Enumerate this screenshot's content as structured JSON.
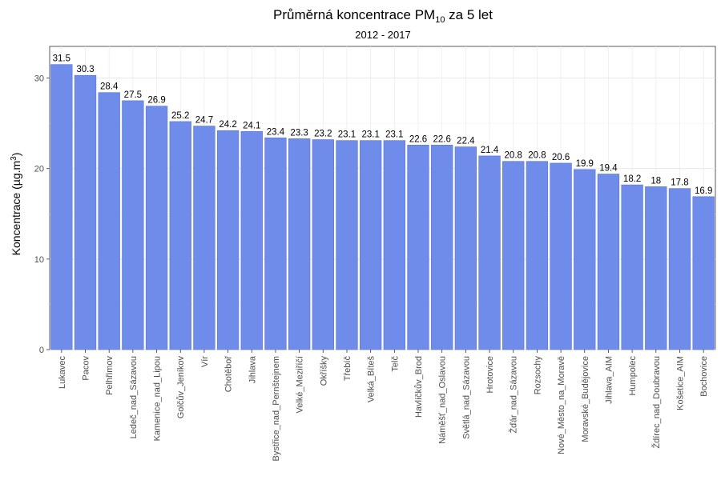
{
  "chart_data": {
    "type": "bar",
    "title": "Průměrná koncentrace PM",
    "title_sub": "10",
    "title_suffix": " za 5 let",
    "subtitle": "2012 - 2017",
    "ylabel": "Koncentrace  (µg.m",
    "ylabel_sup": "3",
    "ylabel_suffix": ")",
    "xlabel": "",
    "ylim": [
      0,
      33.5
    ],
    "yticks": [
      0,
      10,
      20,
      30
    ],
    "grid": true,
    "bar_color": "#6f8ceb",
    "bar_stroke": "#5a75d6",
    "categories": [
      "Lukavec",
      "Pacov",
      "Pelhřimov",
      "Ledeč_nad_Sázavou",
      "Kamenice_nad_Lipou",
      "Golčův_Jeníkov",
      "Vír",
      "Chotěboř",
      "Jihlava",
      "Bystřice_nad_Pernštejnem",
      "Velké_Meziříčí",
      "Okříšky",
      "Třebíč",
      "Velká_Bíteš",
      "Telč",
      "Havlíčkův_Brod",
      "Náměšť_nad_Oslavou",
      "Světlá_nad_Sázavou",
      "Hrotovice",
      "Žďár_nad_Sázavou",
      "Rozsochy",
      "Nové_Město_na_Moravě",
      "Moravské_Budějovice",
      "Jihlava_AIM",
      "Humpolec",
      "Ždírec_nad_Doubravou",
      "Košetice_AIM",
      "Bochovice"
    ],
    "values": [
      31.5,
      30.3,
      28.4,
      27.5,
      26.9,
      25.2,
      24.7,
      24.2,
      24.1,
      23.4,
      23.3,
      23.2,
      23.1,
      23.1,
      23.1,
      22.6,
      22.6,
      22.4,
      21.4,
      20.8,
      20.8,
      20.6,
      19.9,
      19.4,
      18.2,
      18,
      17.8,
      16.9
    ]
  }
}
